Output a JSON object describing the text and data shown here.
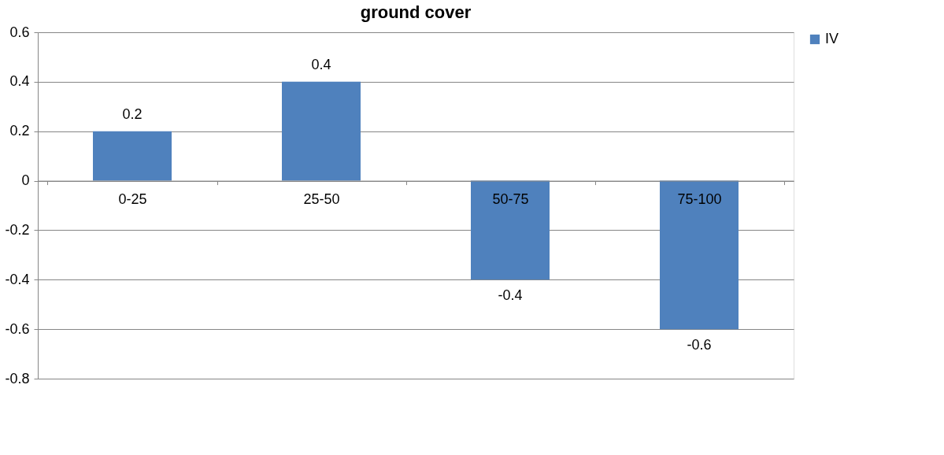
{
  "chart_data": {
    "type": "bar",
    "title": "ground cover",
    "categories": [
      "0-25",
      "25-50",
      "50-75",
      "75-100"
    ],
    "series": [
      {
        "name": "IV",
        "color": "#4f81bd",
        "values": [
          0.2,
          0.4,
          -0.4,
          -0.6
        ]
      }
    ],
    "ylim": [
      -0.8,
      0.6
    ],
    "yticks": [
      -0.8,
      -0.6,
      -0.4,
      -0.2,
      0,
      0.2,
      0.4,
      0.6
    ],
    "grid": "y",
    "legend": "right",
    "data_labels": true
  }
}
